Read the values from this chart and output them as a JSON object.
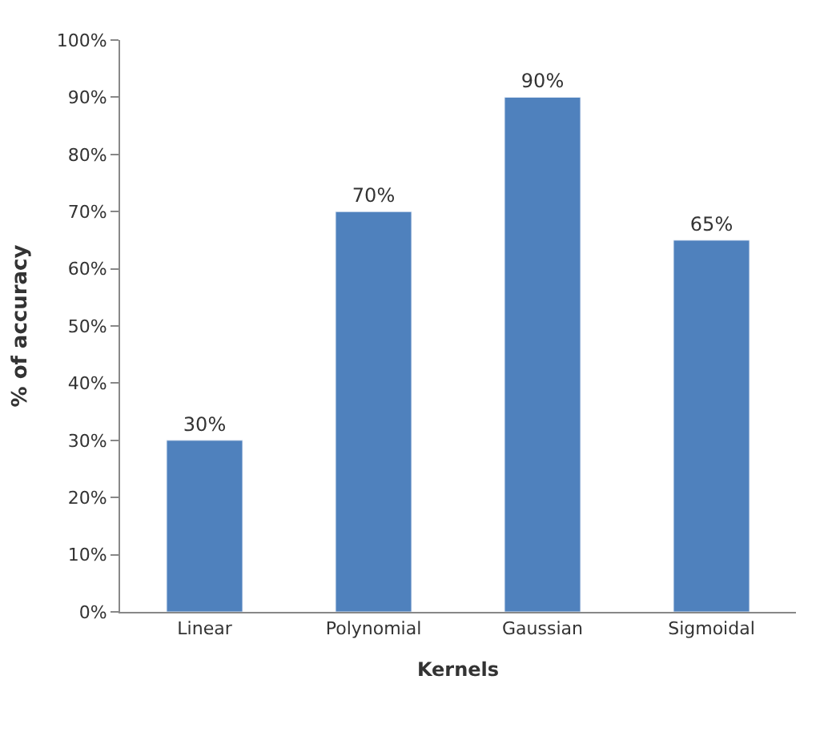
{
  "chart_data": {
    "type": "bar",
    "xlabel": "Kernels",
    "ylabel": "% of accuracy",
    "categories": [
      "Linear",
      "Polynomial",
      "Gaussian",
      "Sigmoidal"
    ],
    "values": [
      30,
      70,
      90,
      65
    ],
    "color": "#4f81bd",
    "value_labels": [
      "30%",
      "70%",
      "90%",
      "65%"
    ],
    "ylim": [
      0,
      100
    ],
    "yticks": [
      {
        "value": 0,
        "label": "0%"
      },
      {
        "value": 10,
        "label": "10%"
      },
      {
        "value": 20,
        "label": "20%"
      },
      {
        "value": 30,
        "label": "30%"
      },
      {
        "value": 40,
        "label": "40%"
      },
      {
        "value": 50,
        "label": "50%"
      },
      {
        "value": 60,
        "label": "60%"
      },
      {
        "value": 70,
        "label": "70%"
      },
      {
        "value": 80,
        "label": "80%"
      },
      {
        "value": 90,
        "label": "90%"
      },
      {
        "value": 100,
        "label": "100%"
      }
    ],
    "orientation": "vertical"
  }
}
